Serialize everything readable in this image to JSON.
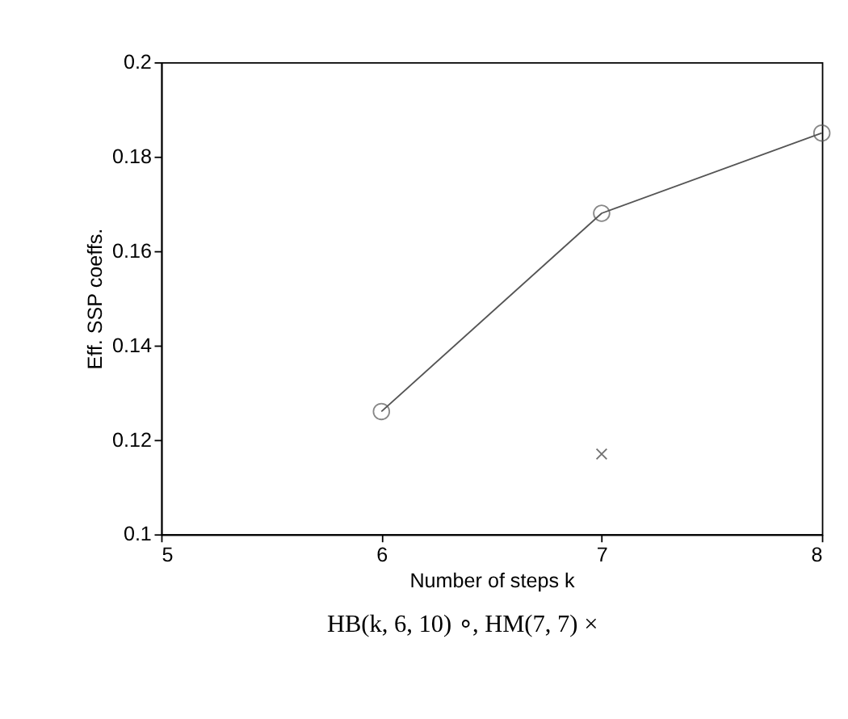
{
  "chart_data": {
    "type": "line",
    "xlabel": "Number of steps k",
    "ylabel": "Eff. SSP coeffs.",
    "x": [
      6,
      7,
      8
    ],
    "series": [
      {
        "color": "#555555",
        "values": [
          0.126,
          0.168,
          0.185
        ],
        "marker": "circle"
      },
      {
        "color": "#333333",
        "x": [
          7
        ],
        "values": [
          0.117
        ],
        "marker": "cross",
        "type": "scatter"
      }
    ],
    "xlim": [
      5,
      8
    ],
    "xticks": [
      5,
      6,
      7,
      8
    ],
    "ylim": [
      0.1,
      0.2
    ],
    "yticks": [
      0.1,
      0.12,
      0.14,
      0.16,
      0.18,
      0.2
    ],
    "grid": false,
    "legend": false,
    "annotations": [
      "HB(k, 6, 10) ∘, HM(7, 7) ×"
    ]
  }
}
